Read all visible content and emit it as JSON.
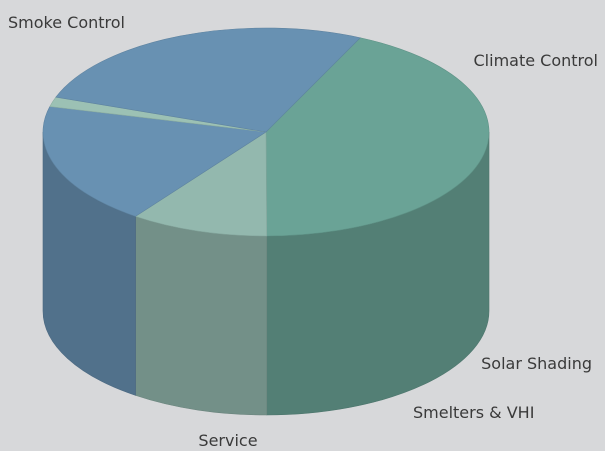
{
  "chart_data": {
    "type": "pie",
    "style": "3d-cylinder",
    "background": "#d7d8da",
    "slices": [
      {
        "label": "Smoke Control",
        "value": 43,
        "color": "#6aa396"
      },
      {
        "label": "Climate Control",
        "value": 10,
        "color": "#93b8ae"
      },
      {
        "label": "Solar Shading",
        "value": 19,
        "color": "#6891b2"
      },
      {
        "label": "Smelters & VHI",
        "value": 1.5,
        "color": "#9cc1b4"
      },
      {
        "label": "Service",
        "value": 26.5,
        "color": "#6891b2"
      }
    ]
  }
}
